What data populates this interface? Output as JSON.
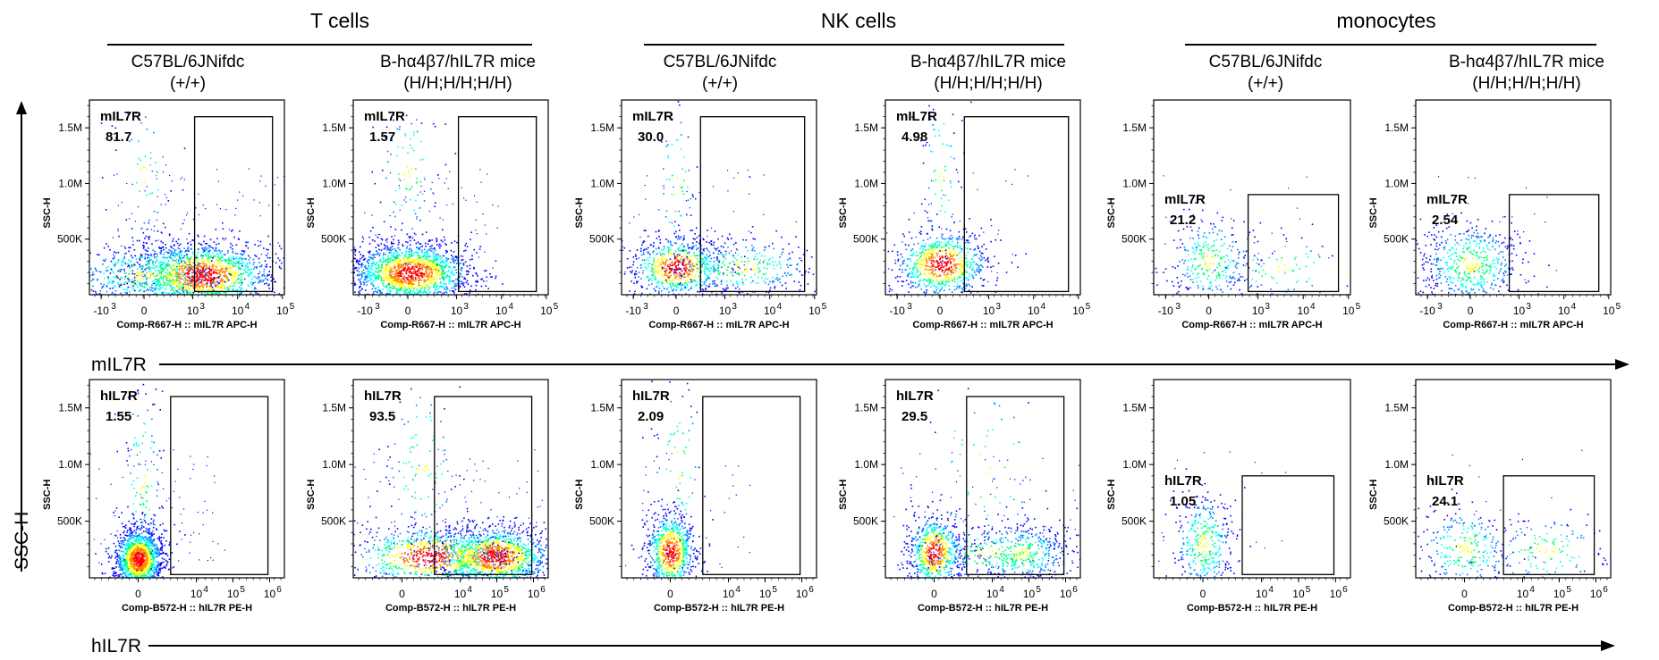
{
  "groups": [
    "T cells",
    "NK cells",
    "monocytes"
  ],
  "column_labels": [
    {
      "name": "C57BL/6JNifdc",
      "genotype": "(+/+)"
    },
    {
      "name": "B-hα4β7/hIL7R mice",
      "genotype": "(H/H;H/H;H/H)"
    },
    {
      "name": "C57BL/6JNifdc",
      "genotype": "(+/+)"
    },
    {
      "name": "B-hα4β7/hIL7R mice",
      "genotype": "(H/H;H/H;H/H)"
    },
    {
      "name": "C57BL/6JNifdc",
      "genotype": "(+/+)"
    },
    {
      "name": "B-hα4β7/hIL7R mice",
      "genotype": "(H/H;H/H;H/H)"
    }
  ],
  "shared_axes": {
    "x_row1": "mIL7R",
    "x_row2": "hIL7R",
    "y": "SSC-H"
  },
  "colors": {
    "density_low": "#0000ff",
    "density_mid": "#00ffff",
    "density_high": "#ffff00",
    "density_peak": "#ff0000",
    "frame": "#000000"
  },
  "chart_data": [
    {
      "type": "scatter",
      "row": 1,
      "group": "T cells",
      "sample": "C57BL/6JNifdc (+/+)",
      "gate_label": "mIL7R",
      "gate_percent": "81.7",
      "xlabel": "Comp-R667-H :: mIL7R APC-H",
      "ylabel": "SSC-H",
      "x_ticks": [
        "-10",
        "0",
        "10",
        "10",
        "10"
      ],
      "x_tick_exponents": [
        "3",
        "",
        "3",
        "4",
        "5"
      ],
      "y_ticks": [
        "1.5M",
        "1.0M",
        "500K"
      ],
      "gate": {
        "x": [
          1100,
          60000
        ],
        "y": [
          5000,
          1600000
        ]
      },
      "populations": [
        {
          "x": 1500,
          "y": 180000,
          "count": 1600,
          "spread": [
            0.55,
            0.11
          ]
        },
        {
          "x": 30,
          "y": 180000,
          "count": 500,
          "spread": [
            0.6,
            0.11
          ]
        },
        {
          "x": 0,
          "y": 1100000,
          "count": 60,
          "spread": [
            0.25,
            0.25
          ]
        }
      ]
    },
    {
      "type": "scatter",
      "row": 1,
      "group": "T cells",
      "sample": "B-hα4β7/hIL7R mice (H/H;H/H;H/H)",
      "gate_label": "mIL7R",
      "gate_percent": "1.57",
      "xlabel": "Comp-R667-H :: mIL7R APC-H",
      "ylabel": "SSC-H",
      "x_ticks": [
        "-10",
        "0",
        "10",
        "10",
        "10"
      ],
      "x_tick_exponents": [
        "3",
        "",
        "3",
        "4",
        "5"
      ],
      "y_ticks": [
        "1.5M",
        "1.0M",
        "500K"
      ],
      "gate": {
        "x": [
          1100,
          60000
        ],
        "y": [
          5000,
          1600000
        ]
      },
      "populations": [
        {
          "x": 50,
          "y": 200000,
          "count": 1700,
          "spread": [
            0.45,
            0.1
          ]
        },
        {
          "x": 0,
          "y": 1100000,
          "count": 90,
          "spread": [
            0.25,
            0.25
          ]
        }
      ]
    },
    {
      "type": "scatter",
      "row": 1,
      "group": "NK cells",
      "sample": "C57BL/6JNifdc (+/+)",
      "gate_label": "mIL7R",
      "gate_percent": "30.0",
      "xlabel": "Comp-R667-H :: mIL7R APC-H",
      "ylabel": "SSC-H",
      "x_ticks": [
        "-10",
        "0",
        "10",
        "10",
        "10"
      ],
      "x_tick_exponents": [
        "3",
        "",
        "3",
        "4",
        "5"
      ],
      "y_ticks": [
        "1.5M",
        "1.0M",
        "500K"
      ],
      "gate": {
        "x": [
          500,
          60000
        ],
        "y": [
          5000,
          1600000
        ]
      },
      "populations": [
        {
          "x": 10,
          "y": 250000,
          "count": 700,
          "spread": [
            0.35,
            0.1
          ]
        },
        {
          "x": 2500,
          "y": 250000,
          "count": 350,
          "spread": [
            0.55,
            0.1
          ]
        },
        {
          "x": 0,
          "y": 1000000,
          "count": 70,
          "spread": [
            0.15,
            0.3
          ]
        }
      ]
    },
    {
      "type": "scatter",
      "row": 1,
      "group": "NK cells",
      "sample": "B-hα4β7/hIL7R mice (H/H;H/H;H/H)",
      "gate_label": "mIL7R",
      "gate_percent": "4.98",
      "xlabel": "Comp-R667-H :: mIL7R APC-H",
      "ylabel": "SSC-H",
      "x_ticks": [
        "-10",
        "0",
        "10",
        "10",
        "10"
      ],
      "x_tick_exponents": [
        "3",
        "",
        "3",
        "4",
        "5"
      ],
      "y_ticks": [
        "1.5M",
        "1.0M",
        "500K"
      ],
      "gate": {
        "x": [
          500,
          60000
        ],
        "y": [
          5000,
          1600000
        ]
      },
      "populations": [
        {
          "x": 20,
          "y": 280000,
          "count": 800,
          "spread": [
            0.35,
            0.11
          ]
        },
        {
          "x": 0,
          "y": 1100000,
          "count": 70,
          "spread": [
            0.15,
            0.3
          ]
        }
      ]
    },
    {
      "type": "scatter",
      "row": 1,
      "group": "monocytes",
      "sample": "C57BL/6JNifdc (+/+)",
      "gate_label": "mIL7R",
      "gate_percent": "21.2",
      "xlabel": "Comp-R667-H :: mIL7R APC-H",
      "ylabel": "SSC-H",
      "x_ticks": [
        "-10",
        "0",
        "10",
        "10",
        "10"
      ],
      "x_tick_exponents": [
        "3",
        "",
        "3",
        "4",
        "5"
      ],
      "y_ticks": [
        "1.5M",
        "1.0M",
        "500K"
      ],
      "gate": {
        "x": [
          800,
          60000
        ],
        "y": [
          5000,
          900000
        ]
      },
      "populations": [
        {
          "x": 0,
          "y": 300000,
          "count": 320,
          "spread": [
            0.3,
            0.15
          ]
        },
        {
          "x": 3000,
          "y": 260000,
          "count": 90,
          "spread": [
            0.5,
            0.12
          ]
        }
      ]
    },
    {
      "type": "scatter",
      "row": 1,
      "group": "monocytes",
      "sample": "B-hα4β7/hIL7R mice (H/H;H/H;H/H)",
      "gate_label": "mIL7R",
      "gate_percent": "2.54",
      "xlabel": "Comp-R667-H :: mIL7R APC-H",
      "ylabel": "SSC-H",
      "x_ticks": [
        "-10",
        "0",
        "10",
        "10",
        "10"
      ],
      "x_tick_exponents": [
        "3",
        "",
        "3",
        "4",
        "5"
      ],
      "y_ticks": [
        "1.5M",
        "1.0M",
        "500K"
      ],
      "gate": {
        "x": [
          800,
          60000
        ],
        "y": [
          5000,
          900000
        ]
      },
      "populations": [
        {
          "x": 0,
          "y": 280000,
          "count": 550,
          "spread": [
            0.38,
            0.14
          ]
        }
      ]
    },
    {
      "type": "scatter",
      "row": 2,
      "group": "T cells",
      "sample": "C57BL/6JNifdc (+/+)",
      "gate_label": "hIL7R",
      "gate_percent": "1.55",
      "xlabel": "Comp-B572-H :: hIL7R PE-H",
      "ylabel": "SSC-H",
      "x_ticks": [
        "0",
        "10",
        "10",
        "10"
      ],
      "x_tick_exponents": [
        "",
        "4",
        "5",
        "6"
      ],
      "y_ticks": [
        "1.5M",
        "1.0M",
        "500K"
      ],
      "gate": {
        "x": [
          2500,
          900000
        ],
        "y": [
          5000,
          1600000
        ]
      },
      "populations": [
        {
          "x": 0,
          "y": 170000,
          "count": 1500,
          "spread": [
            0.18,
            0.1
          ]
        },
        {
          "x": 300,
          "y": 900000,
          "count": 120,
          "spread": [
            0.15,
            0.35
          ]
        }
      ]
    },
    {
      "type": "scatter",
      "row": 2,
      "group": "T cells",
      "sample": "B-hα4β7/hIL7R mice (H/H;H/H;H/H)",
      "gate_label": "hIL7R",
      "gate_percent": "93.5",
      "xlabel": "Comp-B572-H :: hIL7R PE-H",
      "ylabel": "SSC-H",
      "x_ticks": [
        "0",
        "10",
        "10",
        "10"
      ],
      "x_tick_exponents": [
        "",
        "4",
        "5",
        "6"
      ],
      "y_ticks": [
        "1.5M",
        "1.0M",
        "500K"
      ],
      "gate": {
        "x": [
          2500,
          900000
        ],
        "y": [
          5000,
          1600000
        ]
      },
      "populations": [
        {
          "x": 80000,
          "y": 190000,
          "count": 1400,
          "spread": [
            0.45,
            0.1
          ]
        },
        {
          "x": 2000,
          "y": 190000,
          "count": 800,
          "spread": [
            0.6,
            0.1
          ]
        },
        {
          "x": 1500,
          "y": 1000000,
          "count": 100,
          "spread": [
            0.3,
            0.3
          ]
        }
      ]
    },
    {
      "type": "scatter",
      "row": 2,
      "group": "NK cells",
      "sample": "C57BL/6JNifdc (+/+)",
      "gate_label": "hIL7R",
      "gate_percent": "2.09",
      "xlabel": "Comp-B572-H :: hIL7R PE-H",
      "ylabel": "SSC-H",
      "x_ticks": [
        "0",
        "10",
        "10",
        "10"
      ],
      "x_tick_exponents": [
        "",
        "4",
        "5",
        "6"
      ],
      "y_ticks": [
        "1.5M",
        "1.0M",
        "500K"
      ],
      "gate": {
        "x": [
          2500,
          900000
        ],
        "y": [
          5000,
          1600000
        ]
      },
      "populations": [
        {
          "x": 0,
          "y": 230000,
          "count": 800,
          "spread": [
            0.18,
            0.13
          ]
        },
        {
          "x": 500,
          "y": 1000000,
          "count": 80,
          "spread": [
            0.2,
            0.3
          ]
        }
      ]
    },
    {
      "type": "scatter",
      "row": 2,
      "group": "NK cells",
      "sample": "B-hα4β7/hIL7R mice (H/H;H/H;H/H)",
      "gate_label": "hIL7R",
      "gate_percent": "29.5",
      "xlabel": "Comp-B572-H :: hIL7R PE-H",
      "ylabel": "SSC-H",
      "x_ticks": [
        "0",
        "10",
        "10",
        "10"
      ],
      "x_tick_exponents": [
        "",
        "4",
        "5",
        "6"
      ],
      "y_ticks": [
        "1.5M",
        "1.0M",
        "500K"
      ],
      "gate": {
        "x": [
          2500,
          900000
        ],
        "y": [
          5000,
          1600000
        ]
      },
      "populations": [
        {
          "x": 0,
          "y": 230000,
          "count": 700,
          "spread": [
            0.2,
            0.12
          ]
        },
        {
          "x": 60000,
          "y": 220000,
          "count": 350,
          "spread": [
            0.4,
            0.1
          ]
        },
        {
          "x": 8000,
          "y": 220000,
          "count": 250,
          "spread": [
            0.6,
            0.1
          ]
        },
        {
          "x": 5000,
          "y": 1000000,
          "count": 60,
          "spread": [
            0.5,
            0.3
          ]
        }
      ]
    },
    {
      "type": "scatter",
      "row": 2,
      "group": "monocytes",
      "sample": "C57BL/6JNifdc (+/+)",
      "gate_label": "hIL7R",
      "gate_percent": "1.05",
      "xlabel": "Comp-B572-H :: hIL7R PE-H",
      "ylabel": "SSC-H",
      "x_ticks": [
        "0",
        "10",
        "10",
        "10"
      ],
      "x_tick_exponents": [
        "",
        "4",
        "5",
        "6"
      ],
      "y_ticks": [
        "1.5M",
        "1.0M",
        "500K"
      ],
      "gate": {
        "x": [
          3000,
          900000
        ],
        "y": [
          5000,
          900000
        ]
      },
      "populations": [
        {
          "x": 0,
          "y": 300000,
          "count": 380,
          "spread": [
            0.22,
            0.17
          ]
        }
      ]
    },
    {
      "type": "scatter",
      "row": 2,
      "group": "monocytes",
      "sample": "B-hα4β7/hIL7R mice (H/H;H/H;H/H)",
      "gate_label": "hIL7R",
      "gate_percent": "24.1",
      "xlabel": "Comp-B572-H :: hIL7R PE-H",
      "ylabel": "SSC-H",
      "x_ticks": [
        "0",
        "10",
        "10",
        "10"
      ],
      "x_tick_exponents": [
        "",
        "4",
        "5",
        "6"
      ],
      "y_ticks": [
        "1.5M",
        "1.0M",
        "500K"
      ],
      "gate": {
        "x": [
          3000,
          900000
        ],
        "y": [
          5000,
          900000
        ]
      },
      "populations": [
        {
          "x": 0,
          "y": 260000,
          "count": 280,
          "spread": [
            0.35,
            0.14
          ]
        },
        {
          "x": 40000,
          "y": 240000,
          "count": 150,
          "spread": [
            0.5,
            0.12
          ]
        }
      ]
    }
  ]
}
